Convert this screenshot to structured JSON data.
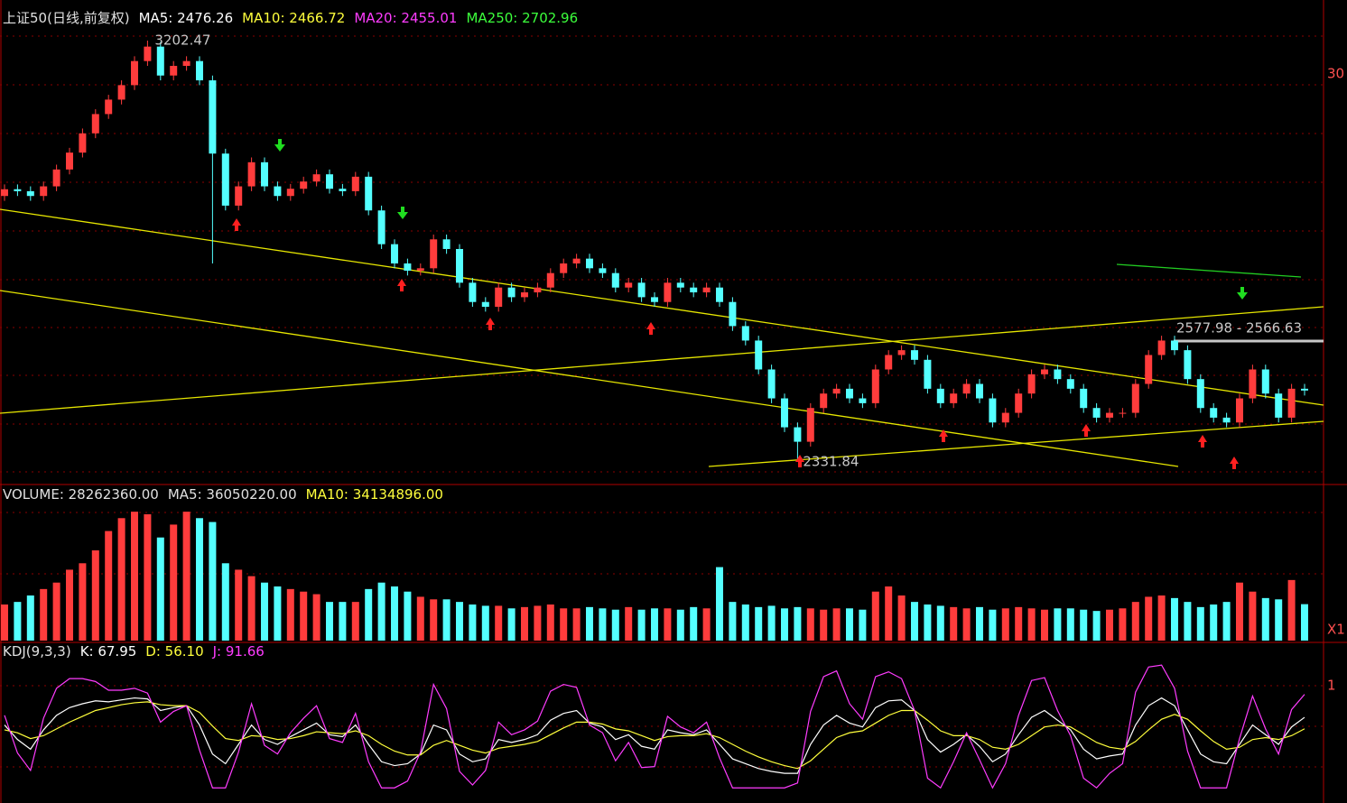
{
  "chart_data": [
    {
      "type": "candlestick",
      "up_color": "#ff3c3c",
      "down_color": "#54ffff",
      "legend": [
        {
          "text": "上证50(日线,前复权)",
          "color": "#e0e0e0"
        },
        {
          "text": "MA5: 2476.26",
          "color": "#ffffff"
        },
        {
          "text": "MA10: 2466.72",
          "color": "#ffff3c"
        },
        {
          "text": "MA20: 2455.01",
          "color": "#ff3cff"
        },
        {
          "text": "MA250: 2702.96",
          "color": "#3cff3c"
        }
      ],
      "annotations": [
        "3202.47",
        "2331.84",
        "2577.98 - 2566.63"
      ],
      "right_labels": [
        "30"
      ],
      "ylim": [
        2285,
        3268
      ],
      "open": [
        2880,
        2894,
        2890,
        2880,
        2900,
        2935,
        2970,
        3010,
        3050,
        3080,
        3110,
        3160,
        3190,
        3130,
        3150,
        3160,
        3120,
        2968,
        2860,
        2900,
        2950,
        2900,
        2880,
        2895,
        2910,
        2925,
        2895,
        2890,
        2920,
        2850,
        2780,
        2740,
        2725,
        2730,
        2790,
        2770,
        2700,
        2660,
        2650,
        2690,
        2670,
        2680,
        2690,
        2720,
        2740,
        2750,
        2730,
        2720,
        2690,
        2700,
        2670,
        2660,
        2700,
        2690,
        2680,
        2690,
        2660,
        2610,
        2580,
        2520,
        2460,
        2400,
        2370,
        2440,
        2470,
        2480,
        2460,
        2450,
        2520,
        2550,
        2560,
        2540,
        2480,
        2450,
        2470,
        2490,
        2460,
        2410,
        2430,
        2470,
        2510,
        2520,
        2500,
        2480,
        2440,
        2420,
        2430,
        2430,
        2490,
        2550,
        2580,
        2560,
        2500,
        2440,
        2420,
        2410,
        2460,
        2520,
        2470,
        2420,
        2480
      ],
      "high": [
        2904,
        2904,
        2900,
        2910,
        2945,
        2980,
        3020,
        3060,
        3090,
        3120,
        3170,
        3202.47,
        3200,
        3160,
        3170,
        3170,
        3130,
        2978,
        2910,
        2960,
        2960,
        2910,
        2905,
        2920,
        2935,
        2935,
        2905,
        2930,
        2930,
        2860,
        2790,
        2750,
        2740,
        2800,
        2800,
        2780,
        2710,
        2670,
        2700,
        2700,
        2690,
        2700,
        2730,
        2750,
        2760,
        2760,
        2740,
        2730,
        2710,
        2710,
        2680,
        2710,
        2710,
        2700,
        2700,
        2700,
        2670,
        2620,
        2590,
        2530,
        2470,
        2410,
        2450,
        2480,
        2490,
        2490,
        2470,
        2530,
        2560,
        2570,
        2570,
        2550,
        2490,
        2480,
        2500,
        2500,
        2470,
        2440,
        2480,
        2520,
        2530,
        2530,
        2510,
        2490,
        2450,
        2440,
        2440,
        2500,
        2560,
        2590,
        2590,
        2570,
        2510,
        2450,
        2430,
        2470,
        2530,
        2530,
        2480,
        2490,
        2490
      ],
      "low": [
        2870,
        2880,
        2870,
        2870,
        2890,
        2925,
        2960,
        3000,
        3040,
        3070,
        3100,
        3150,
        3120,
        3120,
        3140,
        3110,
        2740,
        2850,
        2850,
        2890,
        2890,
        2870,
        2870,
        2885,
        2900,
        2885,
        2880,
        2880,
        2840,
        2770,
        2730,
        2715,
        2715,
        2720,
        2760,
        2690,
        2650,
        2640,
        2640,
        2660,
        2660,
        2670,
        2680,
        2710,
        2730,
        2720,
        2710,
        2680,
        2680,
        2660,
        2650,
        2650,
        2680,
        2670,
        2670,
        2650,
        2600,
        2570,
        2510,
        2450,
        2390,
        2331.84,
        2360,
        2430,
        2460,
        2450,
        2440,
        2440,
        2510,
        2540,
        2530,
        2470,
        2440,
        2440,
        2460,
        2450,
        2400,
        2400,
        2420,
        2460,
        2500,
        2490,
        2470,
        2430,
        2410,
        2410,
        2420,
        2420,
        2480,
        2540,
        2550,
        2490,
        2430,
        2410,
        2400,
        2400,
        2450,
        2460,
        2410,
        2410,
        2466
      ],
      "close": [
        2894,
        2890,
        2880,
        2900,
        2935,
        2970,
        3010,
        3050,
        3080,
        3110,
        3160,
        3190,
        3130,
        3150,
        3160,
        3120,
        2968,
        2860,
        2900,
        2950,
        2900,
        2880,
        2895,
        2910,
        2925,
        2895,
        2890,
        2920,
        2850,
        2780,
        2740,
        2725,
        2730,
        2790,
        2770,
        2700,
        2660,
        2650,
        2690,
        2670,
        2680,
        2690,
        2720,
        2740,
        2750,
        2730,
        2720,
        2690,
        2700,
        2670,
        2660,
        2700,
        2690,
        2680,
        2690,
        2660,
        2610,
        2580,
        2520,
        2460,
        2400,
        2370,
        2440,
        2470,
        2480,
        2460,
        2450,
        2520,
        2550,
        2560,
        2540,
        2480,
        2450,
        2470,
        2490,
        2460,
        2410,
        2430,
        2470,
        2510,
        2520,
        2500,
        2480,
        2440,
        2420,
        2430,
        2430,
        2490,
        2550,
        2580,
        2560,
        2500,
        2440,
        2420,
        2410,
        2460,
        2520,
        2470,
        2420,
        2480,
        2476.26
      ]
    },
    {
      "type": "volume",
      "up_color": "#ff3c3c",
      "down_color": "#54ffff",
      "legend": [
        {
          "text": "VOLUME: 28262360.00",
          "color": "#e0e0e0"
        },
        {
          "text": "MA5: 36050220.00",
          "color": "#e0e0e0"
        },
        {
          "text": "MA10: 34134896.00",
          "color": "#ffff3c"
        }
      ],
      "right_labels": [
        "X1"
      ],
      "ylim": [
        0,
        105000000
      ],
      "values": [
        28000000,
        30000000,
        35000000,
        40000000,
        45000000,
        55000000,
        60000000,
        70000000,
        85000000,
        95000000,
        100000000,
        98000000,
        80000000,
        90000000,
        100000000,
        95000000,
        92000000,
        60000000,
        55000000,
        50000000,
        45000000,
        42000000,
        40000000,
        38000000,
        36000000,
        30000000,
        30000000,
        30000000,
        40000000,
        45000000,
        42000000,
        38000000,
        34000000,
        32000000,
        32000000,
        30000000,
        28000000,
        27000000,
        27000000,
        25000000,
        26000000,
        27000000,
        28000000,
        25000000,
        25000000,
        26000000,
        25000000,
        24000000,
        26000000,
        24000000,
        25000000,
        25000000,
        24000000,
        26000000,
        25000000,
        57000000,
        30000000,
        28000000,
        26000000,
        27000000,
        25000000,
        26000000,
        25000000,
        24000000,
        25000000,
        25000000,
        24000000,
        38000000,
        42000000,
        35000000,
        30000000,
        28000000,
        27000000,
        26000000,
        25000000,
        26000000,
        24000000,
        25000000,
        26000000,
        25000000,
        24000000,
        25000000,
        25000000,
        24000000,
        23000000,
        24000000,
        25000000,
        30000000,
        34000000,
        35000000,
        33000000,
        30000000,
        26000000,
        28000000,
        30000000,
        45000000,
        38000000,
        33000000,
        32000000,
        47000000,
        28262360
      ]
    },
    {
      "type": "line",
      "legend": [
        {
          "text": "KDJ(9,3,3)",
          "color": "#e0e0e0"
        },
        {
          "text": "K: 67.95",
          "color": "#ffffff"
        },
        {
          "text": "D: 56.10",
          "color": "#ffff3c"
        },
        {
          "text": "J: 91.66",
          "color": "#ff3cff"
        }
      ],
      "right_labels": [
        "1"
      ],
      "ylim": [
        -16,
        138
      ],
      "series": [
        {
          "name": "K",
          "color": "#ffffff",
          "values": [
            60,
            45,
            35,
            55,
            70,
            78,
            82,
            85,
            84,
            86,
            88,
            87,
            75,
            78,
            80,
            60,
            30,
            20,
            40,
            60,
            45,
            40,
            48,
            55,
            62,
            50,
            48,
            60,
            40,
            22,
            18,
            20,
            30,
            60,
            55,
            30,
            22,
            25,
            45,
            42,
            45,
            50,
            65,
            72,
            75,
            62,
            58,
            45,
            50,
            38,
            35,
            55,
            52,
            50,
            55,
            40,
            25,
            20,
            15,
            12,
            10,
            10,
            40,
            60,
            70,
            62,
            58,
            78,
            85,
            86,
            75,
            45,
            32,
            40,
            50,
            38,
            22,
            30,
            50,
            68,
            75,
            65,
            55,
            35,
            25,
            28,
            30,
            60,
            80,
            88,
            80,
            55,
            30,
            22,
            20,
            40,
            60,
            50,
            40,
            58,
            67.95
          ]
        },
        {
          "name": "D",
          "color": "#ffff3c",
          "values": [
            55,
            52,
            46,
            49,
            56,
            63,
            69,
            75,
            78,
            81,
            83,
            84,
            81,
            80,
            80,
            73,
            59,
            46,
            44,
            49,
            48,
            45,
            46,
            49,
            53,
            52,
            51,
            54,
            49,
            40,
            33,
            29,
            29,
            39,
            44,
            39,
            34,
            31,
            36,
            38,
            40,
            43,
            50,
            57,
            63,
            63,
            61,
            56,
            54,
            49,
            44,
            48,
            49,
            49,
            51,
            47,
            40,
            33,
            27,
            22,
            18,
            15,
            23,
            35,
            47,
            52,
            54,
            62,
            70,
            75,
            75,
            65,
            54,
            49,
            49,
            45,
            37,
            35,
            40,
            49,
            58,
            60,
            58,
            50,
            42,
            37,
            35,
            43,
            55,
            66,
            71,
            66,
            54,
            43,
            35,
            37,
            45,
            47,
            45,
            49,
            56.1
          ]
        },
        {
          "name": "J",
          "color": "#ff3cff",
          "values": [
            70,
            31,
            13,
            67,
            98,
            108,
            108,
            105,
            96,
            96,
            98,
            93,
            63,
            74,
            80,
            34,
            -5,
            -5,
            32,
            82,
            39,
            30,
            52,
            67,
            80,
            46,
            42,
            72,
            22,
            -5,
            -5,
            2,
            32,
            102,
            77,
            12,
            -2,
            13,
            63,
            50,
            55,
            64,
            95,
            102,
            99,
            60,
            52,
            23,
            42,
            16,
            17,
            69,
            58,
            52,
            63,
            26,
            -5,
            -5,
            -5,
            -5,
            -5,
            0,
            74,
            110,
            116,
            82,
            66,
            110,
            115,
            108,
            75,
            5,
            -5,
            22,
            52,
            24,
            -5,
            20,
            70,
            106,
            109,
            75,
            49,
            5,
            -5,
            10,
            20,
            94,
            120,
            122,
            98,
            33,
            -5,
            -5,
            -5,
            46,
            90,
            56,
            30,
            76,
            91.66
          ]
        }
      ]
    }
  ]
}
